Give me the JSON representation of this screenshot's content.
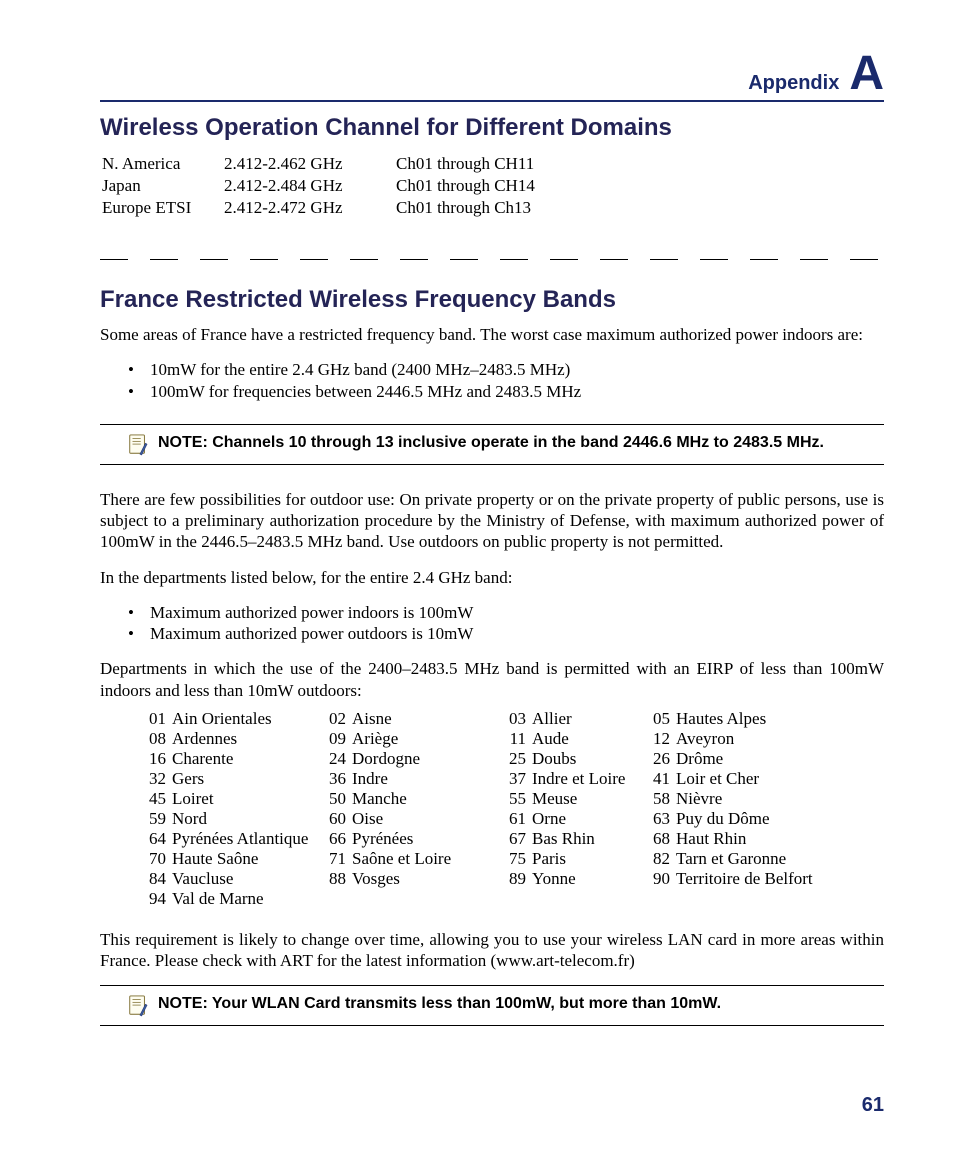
{
  "header": {
    "appendix_label": "Appendix",
    "appendix_letter": "A"
  },
  "section1": {
    "title": "Wireless Operation Channel for Different Domains",
    "rows": [
      {
        "region": "N. America",
        "freq": "2.412-2.462 GHz",
        "ch": "Ch01 through CH11"
      },
      {
        "region": "Japan",
        "freq": "2.412-2.484 GHz",
        "ch": "Ch01 through CH14"
      },
      {
        "region": "Europe ETSI",
        "freq": "2.412-2.472 GHz",
        "ch": "Ch01 through Ch13"
      }
    ]
  },
  "section2": {
    "title": "France Restricted Wireless Frequency Bands",
    "intro": "Some areas of France have a restricted frequency band. The worst case maximum authorized power indoors are:",
    "bullets1": [
      "10mW for the entire 2.4 GHz band (2400 MHz–2483.5 MHz)",
      "100mW for frequencies between 2446.5 MHz and 2483.5 MHz"
    ],
    "note1": "NOTE: Channels 10 through 13 inclusive operate in the band 2446.6 MHz to 2483.5 MHz.",
    "outdoor_para": "There are few possibilities for outdoor use: On private property or on the private property of public persons, use is subject to a preliminary authorization procedure by the Ministry of Defense, with maximum authorized power of 100mW in the 2446.5–2483.5 MHz band. Use outdoors on public property is not permitted.",
    "dept_intro": "In the departments listed below, for the entire 2.4 GHz band:",
    "bullets2": [
      "Maximum authorized power indoors is 100mW",
      "Maximum authorized power outdoors is 10mW"
    ],
    "dept_para": "Departments in which the use of the 2400–2483.5 MHz band is permitted with an EIRP of less than 100mW indoors and less than 10mW outdoors:",
    "departments": [
      [
        "01",
        "Ain Orientales",
        "02",
        "Aisne",
        "03",
        "Allier",
        "05",
        "Hautes Alpes"
      ],
      [
        "08",
        "Ardennes",
        "09",
        "Ariège",
        "11",
        "Aude",
        "12",
        "Aveyron"
      ],
      [
        "16",
        "Charente",
        "24",
        "Dordogne",
        "25",
        "Doubs",
        "26",
        "Drôme"
      ],
      [
        "32",
        "Gers",
        "36",
        "Indre",
        "37",
        "Indre et Loire",
        "41",
        "Loir et Cher"
      ],
      [
        "45",
        "Loiret",
        "50",
        "Manche",
        "55",
        "Meuse",
        "58",
        "Nièvre"
      ],
      [
        "59",
        "Nord",
        "60",
        "Oise",
        "61",
        "Orne",
        "63",
        "Puy du Dôme"
      ],
      [
        "64",
        "Pyrénées Atlantique",
        "66",
        "Pyrénées",
        "67",
        "Bas Rhin",
        "68",
        "Haut Rhin"
      ],
      [
        "70",
        "Haute Saône",
        "71",
        "Saône et Loire",
        "75",
        "Paris",
        "82",
        "Tarn et Garonne"
      ],
      [
        "84",
        "Vaucluse",
        "88",
        "Vosges",
        "89",
        "Yonne",
        "90",
        "Territoire de Belfort"
      ],
      [
        "94",
        "Val de Marne",
        "",
        "",
        "",
        "",
        "",
        ""
      ]
    ],
    "closing": "This requirement is likely to change over time, allowing you to use your wireless LAN card in more areas within France. Please check with ART for the latest information (www.art-telecom.fr)",
    "note2": "NOTE: Your WLAN Card transmits less than 100mW, but more than 10mW."
  },
  "page_number": "61",
  "colors": {
    "accent": "#1a2a6c",
    "heading": "#242456",
    "text": "#000000",
    "background": "#ffffff"
  }
}
